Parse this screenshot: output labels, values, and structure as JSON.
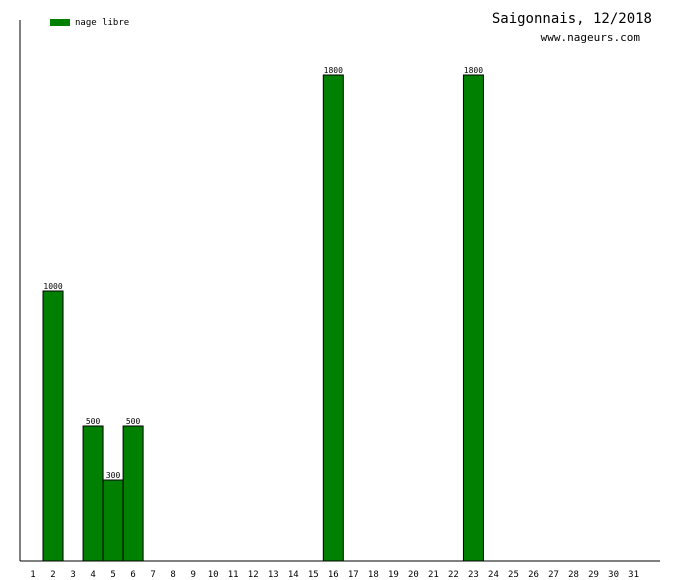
{
  "chart_data": {
    "type": "bar",
    "title": "Saigonnais, 12/2018",
    "subtitle": "www.nageurs.com",
    "legend": {
      "label": "nage libre",
      "position": "top-left"
    },
    "color": "#008000",
    "categories": [
      "1",
      "2",
      "3",
      "4",
      "5",
      "6",
      "7",
      "8",
      "9",
      "10",
      "11",
      "12",
      "13",
      "14",
      "15",
      "16",
      "17",
      "18",
      "19",
      "20",
      "21",
      "22",
      "23",
      "24",
      "25",
      "26",
      "27",
      "28",
      "29",
      "30",
      "31"
    ],
    "values": [
      0,
      1000,
      0,
      500,
      300,
      500,
      0,
      0,
      0,
      0,
      0,
      0,
      0,
      0,
      0,
      1800,
      0,
      0,
      0,
      0,
      0,
      0,
      1800,
      0,
      0,
      0,
      0,
      0,
      0,
      0,
      0
    ],
    "ylim": [
      0,
      2000
    ],
    "grid": false
  }
}
